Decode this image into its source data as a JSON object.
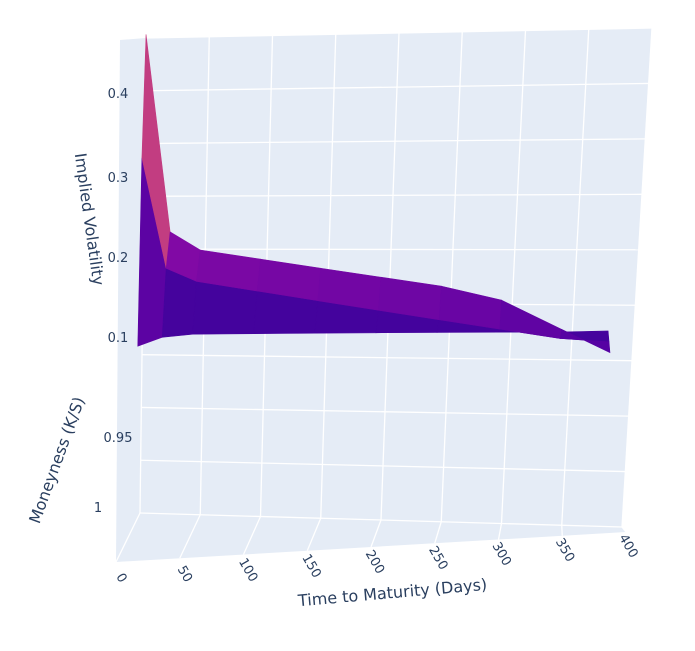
{
  "chart_data": {
    "type": "surface",
    "title": "",
    "colorscale": "plasma",
    "colors": {
      "background_wall": "#e5ecf6",
      "grid": "#ffffff",
      "text": "#2a3f5f",
      "low": "#3d0a91",
      "mid": "#b12a90",
      "high": "#f0d034"
    },
    "axes": {
      "x": {
        "label": "Time to Maturity (Days)",
        "ticks": [
          "0",
          "50",
          "100",
          "150",
          "200",
          "250",
          "300",
          "350",
          "400"
        ],
        "range": [
          0,
          400
        ]
      },
      "y": {
        "label": "Moneyness (K/S)",
        "ticks": [
          "0.95",
          "1"
        ],
        "range": [
          0.9,
          1.02
        ]
      },
      "z": {
        "label": "Implied Volatility",
        "ticks": [
          "0.1",
          "0.2",
          "0.3",
          "0.4"
        ],
        "range": [
          0.0,
          0.45
        ]
      }
    },
    "surface": {
      "t": [
        5,
        25,
        50,
        100,
        150,
        200,
        250,
        300,
        350,
        390
      ],
      "moneyness": [
        0.9,
        0.95,
        1.0
      ],
      "iv": [
        [
          0.44,
          0.26,
          0.245,
          0.24,
          0.235,
          0.23,
          0.225,
          0.215,
          0.19,
          0.17
        ],
        [
          0.3,
          0.2,
          0.19,
          0.185,
          0.18,
          0.175,
          0.17,
          0.165,
          0.16,
          0.16
        ],
        [
          0.1,
          0.11,
          0.115,
          0.12,
          0.125,
          0.13,
          0.135,
          0.14,
          0.145,
          0.15
        ]
      ]
    },
    "grid": true
  }
}
